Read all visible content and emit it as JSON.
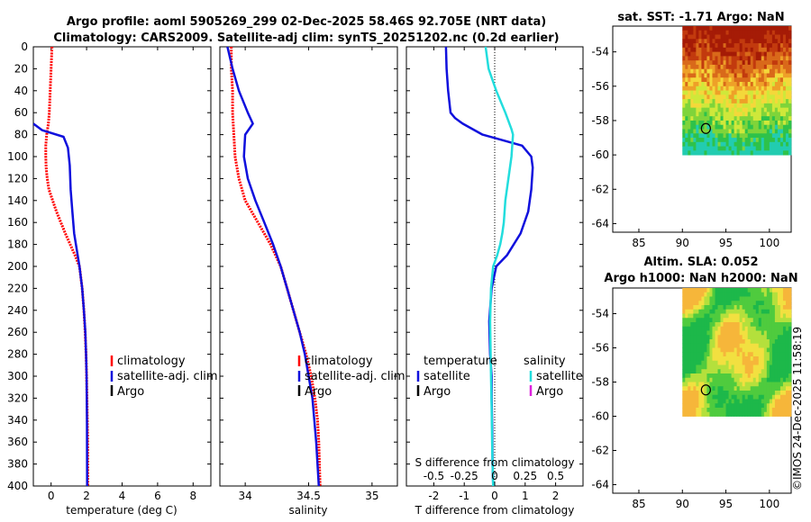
{
  "title": {
    "line1": "Argo profile: aoml 5905269_299 02-Dec-2025 58.46S 92.705E (NRT data)",
    "line2": "Climatology: CARS2009. Satellite-adj clim: synTS_20251202.nc (0.2d earlier)"
  },
  "watermark": "©IMOS 24-Dec-2025 11:58:19",
  "colors": {
    "red": "#ff0000",
    "blue": "#1010dd",
    "cyan": "#22dddd",
    "magenta": "#dd22dd",
    "black": "#000000"
  },
  "chart_data": [
    {
      "type": "line",
      "name": "temperature-panel",
      "xlabel": "temperature (deg C)",
      "xlim": [
        -1,
        9
      ],
      "ylim": [
        0,
        400
      ],
      "xticks": [
        0,
        2,
        4,
        6,
        8
      ],
      "xticklabels": [
        "0",
        "2",
        "4",
        "6",
        "8"
      ],
      "yticks": [
        0,
        20,
        40,
        60,
        80,
        100,
        120,
        140,
        160,
        180,
        200,
        220,
        240,
        260,
        280,
        300,
        320,
        340,
        360,
        380,
        400
      ],
      "series": [
        {
          "name": "climatology",
          "color": "#ff0000",
          "dashed": true,
          "x": [
            0.05,
            0.0,
            -0.05,
            -0.1,
            -0.15,
            -0.25,
            -0.3,
            -0.3,
            -0.28,
            -0.22,
            -0.12,
            0.3,
            0.8,
            1.35,
            1.6,
            1.75,
            1.85,
            1.92,
            1.97,
            2.0,
            2.02,
            2.04,
            2.06,
            2.07
          ],
          "y": [
            0,
            20,
            40,
            60,
            70,
            80,
            90,
            100,
            110,
            120,
            130,
            150,
            170,
            190,
            200,
            220,
            240,
            260,
            280,
            300,
            320,
            340,
            360,
            400
          ]
        },
        {
          "name": "satellite-adj. clim",
          "color": "#1010dd",
          "dashed": false,
          "x": [
            -1.0,
            -0.5,
            0.7,
            0.95,
            1.05,
            1.1,
            1.2,
            1.3,
            1.6,
            1.75,
            1.85,
            1.93,
            1.97,
            2.0,
            2.02,
            2.03
          ],
          "y": [
            70,
            76,
            82,
            92,
            108,
            130,
            150,
            170,
            200,
            220,
            240,
            260,
            280,
            300,
            340,
            400
          ]
        }
      ],
      "legend": [
        "climatology",
        "satellite-adj. clim",
        "Argo"
      ]
    },
    {
      "type": "line",
      "name": "salinity-panel",
      "xlabel": "salinity",
      "xlim": [
        33.8,
        35.2
      ],
      "ylim": [
        0,
        400
      ],
      "xticks": [
        34,
        34.5,
        35
      ],
      "xticklabels": [
        "34",
        "34.5",
        "35"
      ],
      "series": [
        {
          "name": "climatology",
          "color": "#ff0000",
          "dashed": true,
          "x": [
            33.89,
            33.89,
            33.9,
            33.9,
            33.91,
            33.92,
            33.95,
            34.0,
            34.1,
            34.2,
            34.28,
            34.33,
            34.38,
            34.43,
            34.48,
            34.52,
            34.55,
            34.57,
            34.58,
            34.59
          ],
          "y": [
            0,
            20,
            40,
            60,
            80,
            100,
            120,
            140,
            160,
            180,
            200,
            220,
            240,
            260,
            280,
            300,
            320,
            340,
            360,
            400
          ]
        },
        {
          "name": "satellite-adj. clim",
          "color": "#1010dd",
          "dashed": false,
          "x": [
            33.86,
            33.9,
            33.95,
            34.02,
            34.06,
            34.0,
            33.99,
            34.02,
            34.08,
            34.15,
            34.22,
            34.28,
            34.33,
            34.38,
            34.43,
            34.47,
            34.5,
            34.53,
            34.56,
            34.58
          ],
          "y": [
            0,
            20,
            40,
            60,
            70,
            80,
            100,
            120,
            140,
            160,
            180,
            200,
            220,
            240,
            260,
            280,
            300,
            320,
            360,
            400
          ]
        }
      ],
      "legend": [
        "climatology",
        "satellite-adj. clim",
        "Argo"
      ]
    },
    {
      "type": "line",
      "name": "difference-panel",
      "xlabel": "T difference from climatology",
      "xlabel_top": "S difference from climatology",
      "xlim": [
        -2.9,
        2.9
      ],
      "ylim": [
        0,
        400
      ],
      "xticks": [
        -2,
        -1,
        0,
        1,
        2
      ],
      "xticklabels": [
        "-2",
        "-1",
        "0",
        "1",
        "2"
      ],
      "s_ticklabels": [
        "-0.5",
        "-0.25",
        "0",
        "0.25",
        "0.5"
      ],
      "series": [
        {
          "name": "temperature satellite",
          "color": "#1010dd",
          "x": [
            -1.6,
            -1.58,
            -1.53,
            -1.45,
            -1.3,
            -1.05,
            -0.4,
            0.9,
            1.2,
            1.25,
            1.2,
            1.1,
            0.85,
            0.4,
            0.05,
            -0.1,
            -0.18,
            -0.15,
            -0.1,
            -0.1,
            -0.08,
            -0.07,
            -0.05
          ],
          "y": [
            0,
            20,
            40,
            60,
            65,
            70,
            80,
            90,
            100,
            110,
            130,
            150,
            170,
            190,
            200,
            220,
            250,
            280,
            300,
            320,
            350,
            380,
            400
          ]
        },
        {
          "name": "salinity satellite",
          "color": "#22dddd",
          "x": [
            -0.3,
            -0.2,
            0.05,
            0.35,
            0.55,
            0.6,
            0.55,
            0.45,
            0.35,
            0.3,
            0.25,
            0.18,
            0.08,
            -0.05,
            -0.12,
            -0.15,
            -0.12,
            -0.1,
            -0.08,
            -0.05
          ],
          "y": [
            0,
            20,
            40,
            60,
            75,
            80,
            100,
            120,
            140,
            160,
            170,
            180,
            190,
            200,
            220,
            250,
            300,
            330,
            370,
            400
          ]
        }
      ],
      "legend_temp_title": "temperature",
      "legend_sal_title": "salinity",
      "legend_temp": [
        "satellite",
        "Argo"
      ],
      "legend_sal": [
        "satellite",
        "Argo"
      ]
    },
    {
      "type": "heatmap",
      "name": "sst-map",
      "title": "sat. SST: -1.71 Argo: NaN",
      "xlim": [
        82,
        102.5
      ],
      "ylim": [
        -64.5,
        -52.5
      ],
      "xticks": [
        85,
        90,
        95,
        100
      ],
      "yticks": [
        -54,
        -56,
        -58,
        -60,
        -62,
        -64
      ],
      "data_extent": {
        "lon": [
          90,
          102.5
        ],
        "lat": [
          -60,
          -52.5
        ]
      },
      "marker": {
        "lon": 92.7,
        "lat": -58.46
      }
    },
    {
      "type": "heatmap",
      "name": "sla-map",
      "title_line1": "Altim. SLA: 0.052",
      "title_line2": "Argo h1000: NaN h2000: NaN",
      "xlim": [
        82,
        102.5
      ],
      "ylim": [
        -64.5,
        -52.5
      ],
      "xticks": [
        85,
        90,
        95,
        100
      ],
      "yticks": [
        -54,
        -56,
        -58,
        -60,
        -62,
        -64
      ],
      "data_extent": {
        "lon": [
          90,
          102.5
        ],
        "lat": [
          -60,
          -52.5
        ]
      },
      "marker": {
        "lon": 92.7,
        "lat": -58.46
      }
    }
  ]
}
